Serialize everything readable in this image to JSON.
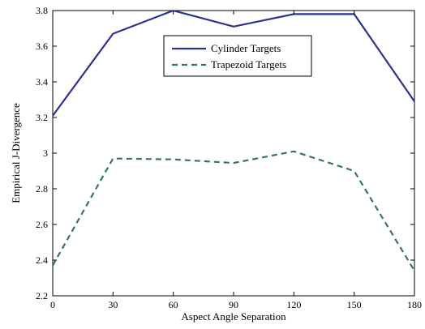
{
  "chart_data": {
    "type": "line",
    "x": [
      0,
      30,
      60,
      90,
      120,
      150,
      180
    ],
    "series": [
      {
        "name": "Cylinder Targets",
        "values": [
          3.21,
          3.67,
          3.8,
          3.71,
          3.78,
          3.78,
          3.29
        ],
        "color": "#2e3192",
        "style": "solid"
      },
      {
        "name": "Trapezoid Targets",
        "values": [
          2.37,
          2.97,
          2.965,
          2.945,
          3.01,
          2.9,
          2.34
        ],
        "color": "#3a7360",
        "style": "dashed"
      }
    ],
    "title": "",
    "xlabel": "Aspect Angle Separation",
    "ylabel": "Empirical J-Divergence",
    "xlim": [
      0,
      180
    ],
    "ylim": [
      2.2,
      3.8
    ],
    "xticks": [
      0,
      30,
      60,
      90,
      120,
      150,
      180
    ],
    "xtick_labels": [
      "0",
      "30",
      "60",
      "90",
      "120",
      "150",
      "180"
    ],
    "yticks": [
      2.2,
      2.4,
      2.6,
      2.8,
      3.0,
      3.2,
      3.4,
      3.6,
      3.8
    ],
    "ytick_labels": [
      "2.2",
      "2.4",
      "2.6",
      "2.8",
      "3",
      "3.2",
      "3.4",
      "3.6",
      "3.8"
    ],
    "grid": false,
    "legend_position": "top-center"
  }
}
